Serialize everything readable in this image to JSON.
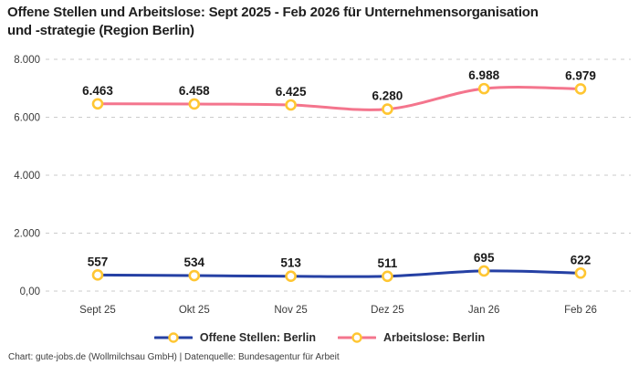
{
  "title": {
    "line1": "Offene Stellen und Arbeitslose: Sept 2025 - Feb 2026 für Unternehmensorganisation",
    "line2": "und -strategie (Region Berlin)"
  },
  "legend": {
    "items": [
      {
        "label": "Offene Stellen: Berlin"
      },
      {
        "label": "Arbeitslose: Berlin"
      }
    ]
  },
  "footer": {
    "credit": "Chart: gute-jobs.de (Wollmilchsau GmbH) | Datenquelle: Bundesagentur für Arbeit"
  },
  "colors": {
    "blue": "#2540A4",
    "pink": "#F4758D",
    "marker_yellow": "#FFC632",
    "grid": "#CBCBCB",
    "background": "#FFFFFF"
  },
  "chart_data": {
    "type": "line",
    "title": "Offene Stellen und Arbeitslose: Sept 2025 - Feb 2026 für Unternehmensorganisation und -strategie (Region Berlin)",
    "categories": [
      "Sept 25",
      "Okt 25",
      "Nov 25",
      "Dez 25",
      "Jan 26",
      "Feb 26"
    ],
    "series": [
      {
        "name": "Offene Stellen: Berlin",
        "color": "#2540A4",
        "values": [
          557,
          534,
          513,
          511,
          695,
          622
        ],
        "labels": [
          "557",
          "534",
          "513",
          "511",
          "695",
          "622"
        ]
      },
      {
        "name": "Arbeitslose: Berlin",
        "color": "#F4758D",
        "values": [
          6463,
          6458,
          6425,
          6280,
          6988,
          6979
        ],
        "labels": [
          "6.463",
          "6.458",
          "6.425",
          "6.280",
          "6.988",
          "6.979"
        ]
      }
    ],
    "xlabel": "",
    "ylabel": "",
    "ylim": [
      0,
      8000
    ],
    "yticks": [
      {
        "value": 0,
        "label": "0,00"
      },
      {
        "value": 2000,
        "label": "2.000"
      },
      {
        "value": 4000,
        "label": "4.000"
      },
      {
        "value": 6000,
        "label": "6.000"
      },
      {
        "value": 8000,
        "label": "8.000"
      }
    ],
    "grid": "horizontal-dashed",
    "legend_position": "bottom",
    "marker": {
      "shape": "circle-ring",
      "stroke": "#FFC632",
      "fill": "#FFFFFF"
    }
  }
}
